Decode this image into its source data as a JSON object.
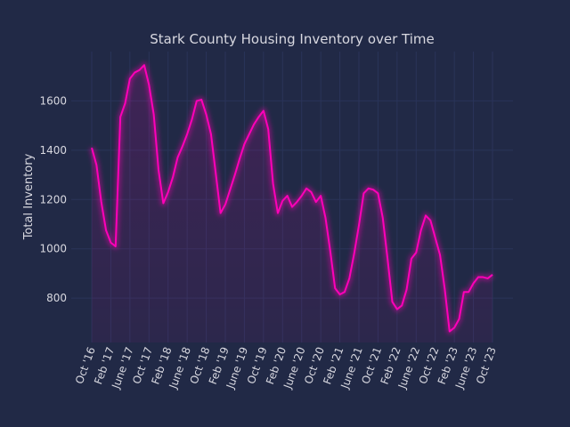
{
  "colors": {
    "background": "#212946",
    "grid": "#2A3459",
    "line": "#FE00B8",
    "text": "#d8d8e0"
  },
  "chart_data": {
    "type": "area",
    "title": "Stark County Housing Inventory over Time",
    "xlabel": "",
    "ylabel": "Total Inventory",
    "ylim": [
      620,
      1800
    ],
    "yticks": [
      800,
      1000,
      1200,
      1400,
      1600
    ],
    "grid": true,
    "xtick_labels": [
      "Oct '16",
      "Feb '17",
      "June '17",
      "Oct '17",
      "Feb '18",
      "June '18",
      "Oct '18",
      "Feb '19",
      "June '19",
      "Oct '19",
      "Feb '20",
      "June '20",
      "Oct '20",
      "Feb '21",
      "June '21",
      "Oct '21",
      "Feb '22",
      "June '22",
      "Oct '22",
      "Feb '23",
      "June '23",
      "Oct '23"
    ],
    "xtick_month_index": [
      0,
      4,
      8,
      12,
      16,
      20,
      24,
      28,
      32,
      36,
      40,
      44,
      48,
      52,
      56,
      60,
      64,
      68,
      72,
      76,
      80,
      84
    ],
    "series": [
      {
        "name": "Total Inventory",
        "start": "Oct 2016",
        "frequency": "monthly",
        "values": [
          1410,
          1340,
          1190,
          1075,
          1025,
          1010,
          1535,
          1590,
          1690,
          1715,
          1725,
          1745,
          1665,
          1545,
          1320,
          1185,
          1230,
          1290,
          1370,
          1415,
          1465,
          1525,
          1600,
          1605,
          1545,
          1465,
          1305,
          1145,
          1180,
          1240,
          1300,
          1365,
          1425,
          1465,
          1505,
          1535,
          1560,
          1485,
          1265,
          1145,
          1195,
          1215,
          1170,
          1190,
          1215,
          1245,
          1230,
          1190,
          1215,
          1125,
          990,
          840,
          815,
          825,
          880,
          980,
          1095,
          1225,
          1245,
          1240,
          1225,
          1125,
          960,
          785,
          755,
          770,
          835,
          960,
          985,
          1075,
          1135,
          1115,
          1045,
          975,
          835,
          665,
          680,
          715,
          825,
          825,
          860,
          885,
          885,
          880,
          895
        ]
      }
    ]
  }
}
